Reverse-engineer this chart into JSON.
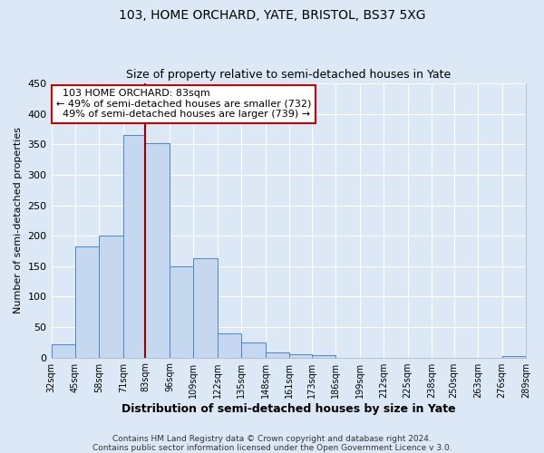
{
  "title": "103, HOME ORCHARD, YATE, BRISTOL, BS37 5XG",
  "subtitle": "Size of property relative to semi-detached houses in Yate",
  "xlabel": "Distribution of semi-detached houses by size in Yate",
  "ylabel": "Number of semi-detached properties",
  "footer_line1": "Contains HM Land Registry data © Crown copyright and database right 2024.",
  "footer_line2": "Contains public sector information licensed under the Open Government Licence v 3.0.",
  "bin_labels": [
    "32sqm",
    "45sqm",
    "58sqm",
    "71sqm",
    "83sqm",
    "96sqm",
    "109sqm",
    "122sqm",
    "135sqm",
    "148sqm",
    "161sqm",
    "173sqm",
    "186sqm",
    "199sqm",
    "212sqm",
    "225sqm",
    "238sqm",
    "250sqm",
    "263sqm",
    "276sqm",
    "289sqm"
  ],
  "bin_edges": [
    32,
    45,
    58,
    71,
    83,
    96,
    109,
    122,
    135,
    148,
    161,
    173,
    186,
    199,
    212,
    225,
    238,
    250,
    263,
    276,
    289
  ],
  "bar_heights": [
    22,
    183,
    200,
    365,
    352,
    150,
    163,
    40,
    25,
    9,
    5,
    4,
    0,
    0,
    0,
    0,
    0,
    0,
    0,
    3
  ],
  "bar_color": "#c5d8f0",
  "bar_edge_color": "#4f86c0",
  "property_value": 83,
  "vline_color": "#990000",
  "annotation_text_line1": "103 HOME ORCHARD: 83sqm",
  "annotation_text_line2": "← 49% of semi-detached houses are smaller (732)",
  "annotation_text_line3": "49% of semi-detached houses are larger (739) →",
  "annotation_box_color": "#ffffff",
  "annotation_box_edge": "#cc0000",
  "ylim": [
    0,
    450
  ],
  "yticks": [
    0,
    50,
    100,
    150,
    200,
    250,
    300,
    350,
    400,
    450
  ],
  "bg_color": "#dce8f5",
  "plot_bg_color": "#dce8f5",
  "grid_color": "#ffffff"
}
